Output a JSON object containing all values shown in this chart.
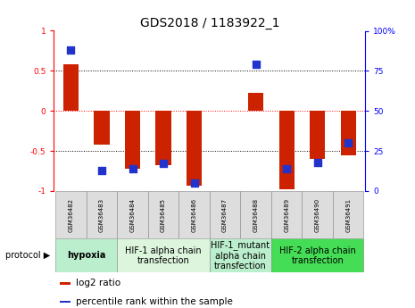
{
  "title": "GDS2018 / 1183922_1",
  "samples": [
    "GSM36482",
    "GSM36483",
    "GSM36484",
    "GSM36485",
    "GSM36486",
    "GSM36487",
    "GSM36488",
    "GSM36489",
    "GSM36490",
    "GSM36491"
  ],
  "log2_ratio": [
    0.58,
    -0.42,
    -0.72,
    -0.68,
    -0.93,
    0.0,
    0.22,
    -0.98,
    -0.6,
    -0.55
  ],
  "percentile_rank": [
    88,
    13,
    14,
    17,
    5,
    0.0,
    79,
    14,
    18,
    30
  ],
  "ylim_left": [
    -1,
    1
  ],
  "ylim_right": [
    0,
    100
  ],
  "yticks_left": [
    -1,
    -0.5,
    0,
    0.5,
    1
  ],
  "yticks_right": [
    0,
    25,
    50,
    75,
    100
  ],
  "hlines": [
    -0.5,
    0,
    0.5
  ],
  "hline_colors": [
    "black",
    "red",
    "black"
  ],
  "hline_styles": [
    "dotted",
    "dotted",
    "dotted"
  ],
  "bar_color": "#cc2200",
  "dot_color": "#2233cc",
  "protocols": [
    {
      "label": "hypoxia",
      "start": 0,
      "end": 1,
      "color": "#bbeecc",
      "bold": true
    },
    {
      "label": "HIF-1 alpha chain\ntransfection",
      "start": 2,
      "end": 4,
      "color": "#ddf5dd",
      "bold": false
    },
    {
      "label": "HIF-1_mutant\nalpha chain\ntransfection",
      "start": 5,
      "end": 6,
      "color": "#bbeecc",
      "bold": false
    },
    {
      "label": "HIF-2 alpha chain\ntransfection",
      "start": 7,
      "end": 9,
      "color": "#44dd55",
      "bold": false
    }
  ],
  "legend_items": [
    {
      "label": "log2 ratio",
      "color": "#cc2200"
    },
    {
      "label": "percentile rank within the sample",
      "color": "#2233cc"
    }
  ],
  "bar_width": 0.5,
  "dot_size": 28,
  "bg_color": "#ffffff",
  "plot_bg_color": "#ffffff",
  "title_fontsize": 10,
  "tick_fontsize": 6.5,
  "sample_fontsize": 5,
  "protocol_fontsize": 7,
  "legend_fontsize": 7.5
}
